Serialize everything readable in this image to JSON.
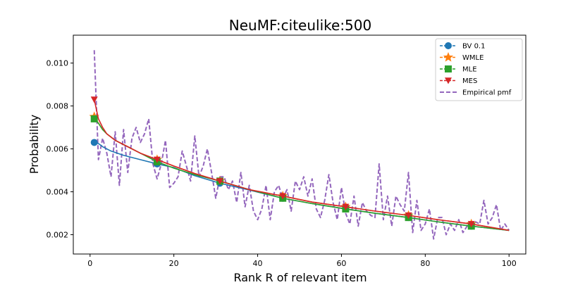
{
  "chart_data": {
    "type": "line",
    "title": "NeuMF:citeulike:500",
    "xlabel": "Rank R of relevant item",
    "ylabel": "Probability",
    "xlim": [
      -4,
      104
    ],
    "ylim": [
      0.0011,
      0.0113
    ],
    "x_ticks": [
      0,
      20,
      40,
      60,
      80,
      100
    ],
    "y_ticks": [
      0.002,
      0.004,
      0.006,
      0.008,
      0.01
    ],
    "x_tick_labels": [
      "0",
      "20",
      "40",
      "60",
      "80",
      "100"
    ],
    "y_tick_labels": [
      "0.002",
      "0.004",
      "0.006",
      "0.008",
      "0.010"
    ],
    "grid": false,
    "legend_position": "top-right",
    "marker_ranks": [
      1,
      16,
      31,
      46,
      61,
      76,
      91
    ],
    "series": [
      {
        "name": "BV 0.1",
        "color": "#1f77b4",
        "marker": "circle",
        "style": "dashed",
        "x": [
          1,
          2,
          3,
          5,
          8,
          12,
          16,
          20,
          25,
          31,
          38,
          46,
          53,
          61,
          68,
          76,
          83,
          91,
          100
        ],
        "y": [
          0.0063,
          0.00625,
          0.0061,
          0.0059,
          0.0057,
          0.0055,
          0.0053,
          0.00513,
          0.00475,
          0.0044,
          0.00408,
          0.0037,
          0.00345,
          0.0032,
          0.003,
          0.0028,
          0.0026,
          0.0024,
          0.0022
        ]
      },
      {
        "name": "WMLE",
        "color": "#ff7f0e",
        "marker": "star",
        "style": "dashed",
        "x": [
          1,
          2,
          3,
          4,
          6,
          8,
          12,
          16,
          20,
          25,
          31,
          38,
          46,
          53,
          61,
          68,
          76,
          83,
          91,
          100
        ],
        "y": [
          0.0075,
          0.0072,
          0.0069,
          0.0067,
          0.0064,
          0.0062,
          0.0058,
          0.0055,
          0.0052,
          0.00485,
          0.0045,
          0.0041,
          0.0038,
          0.00352,
          0.0033,
          0.0031,
          0.0029,
          0.0027,
          0.0025,
          0.0022
        ]
      },
      {
        "name": "MLE",
        "color": "#2ca02c",
        "marker": "square",
        "style": "dashed",
        "x": [
          1,
          2,
          3,
          4,
          6,
          8,
          12,
          16,
          20,
          25,
          31,
          38,
          46,
          53,
          61,
          68,
          76,
          83,
          91,
          100
        ],
        "y": [
          0.0074,
          0.0072,
          0.0069,
          0.0067,
          0.0064,
          0.0062,
          0.0058,
          0.0054,
          0.0051,
          0.0048,
          0.0045,
          0.0041,
          0.0037,
          0.00345,
          0.0032,
          0.003,
          0.0028,
          0.0026,
          0.0024,
          0.0022
        ]
      },
      {
        "name": "MES",
        "color": "#d62728",
        "marker": "triangle-down",
        "style": "dashed",
        "x": [
          1,
          2,
          3,
          4,
          6,
          8,
          12,
          16,
          20,
          25,
          31,
          38,
          46,
          53,
          61,
          68,
          76,
          83,
          91,
          100
        ],
        "y": [
          0.0083,
          0.0074,
          0.007,
          0.0067,
          0.0064,
          0.0062,
          0.0058,
          0.0055,
          0.0052,
          0.00485,
          0.0045,
          0.0041,
          0.0038,
          0.00352,
          0.0033,
          0.0031,
          0.0029,
          0.0027,
          0.0025,
          0.0022
        ]
      },
      {
        "name": "Empirical pmf",
        "color": "#9467bd",
        "marker": "none",
        "style": "dashed",
        "x": [
          1,
          2,
          3,
          4,
          5,
          6,
          7,
          8,
          9,
          10,
          11,
          12,
          13,
          14,
          15,
          16,
          17,
          18,
          19,
          20,
          21,
          22,
          23,
          24,
          25,
          26,
          27,
          28,
          29,
          30,
          31,
          32,
          33,
          34,
          35,
          36,
          37,
          38,
          39,
          40,
          41,
          42,
          43,
          44,
          45,
          46,
          47,
          48,
          49,
          50,
          51,
          52,
          53,
          54,
          55,
          56,
          57,
          58,
          59,
          60,
          61,
          62,
          63,
          64,
          65,
          66,
          67,
          68,
          69,
          70,
          71,
          72,
          73,
          74,
          75,
          76,
          77,
          78,
          79,
          80,
          81,
          82,
          83,
          84,
          85,
          86,
          87,
          88,
          89,
          90,
          91,
          92,
          93,
          94,
          95,
          96,
          97,
          98,
          99,
          100
        ],
        "y": [
          0.0106,
          0.0055,
          0.0065,
          0.0058,
          0.0047,
          0.0068,
          0.0043,
          0.0069,
          0.0049,
          0.0065,
          0.007,
          0.0063,
          0.0067,
          0.0074,
          0.0053,
          0.0046,
          0.0053,
          0.0064,
          0.0042,
          0.0044,
          0.0047,
          0.0059,
          0.0052,
          0.0045,
          0.0066,
          0.0047,
          0.0052,
          0.006,
          0.0049,
          0.0037,
          0.0047,
          0.0047,
          0.0041,
          0.0045,
          0.0035,
          0.0049,
          0.0033,
          0.0043,
          0.0031,
          0.0027,
          0.0032,
          0.0043,
          0.0027,
          0.004,
          0.0043,
          0.0037,
          0.0041,
          0.0031,
          0.0045,
          0.0041,
          0.0047,
          0.0038,
          0.0046,
          0.0032,
          0.0028,
          0.0036,
          0.0048,
          0.0035,
          0.0027,
          0.0042,
          0.003,
          0.0025,
          0.0038,
          0.0024,
          0.0035,
          0.0031,
          0.0029,
          0.0028,
          0.0053,
          0.0027,
          0.0038,
          0.0024,
          0.0038,
          0.0034,
          0.0031,
          0.0049,
          0.0021,
          0.0036,
          0.0022,
          0.0025,
          0.0032,
          0.0018,
          0.0028,
          0.0028,
          0.002,
          0.0025,
          0.0022,
          0.0027,
          0.0021,
          0.0024,
          0.0025,
          0.0026,
          0.0025,
          0.0036,
          0.0025,
          0.0028,
          0.0034,
          0.0022,
          0.0025,
          0.0022
        ]
      }
    ]
  }
}
